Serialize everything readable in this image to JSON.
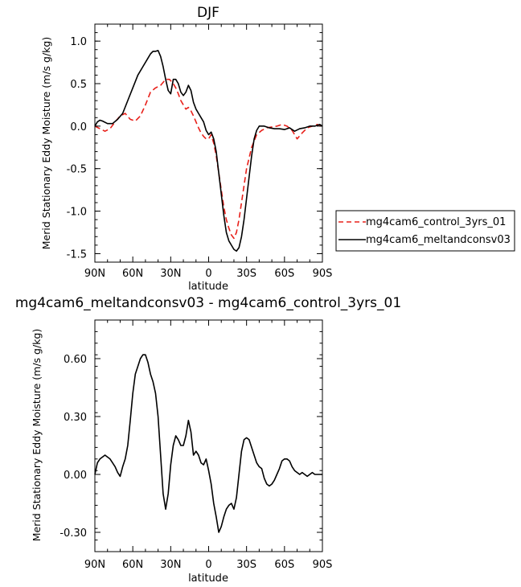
{
  "chart_data": [
    {
      "type": "line",
      "title": "DJF",
      "xlabel": "latitude",
      "ylabel": "Merid Stationary Eddy Moisture (m/s g/kg)",
      "xlim": [
        90,
        -90
      ],
      "ylim": [
        -1.6,
        1.2
      ],
      "x_ticks": [
        {
          "value": 90,
          "label": "90N"
        },
        {
          "value": 60,
          "label": "60N"
        },
        {
          "value": 30,
          "label": "30N"
        },
        {
          "value": 0,
          "label": "0"
        },
        {
          "value": -30,
          "label": "30S"
        },
        {
          "value": -60,
          "label": "60S"
        },
        {
          "value": -90,
          "label": "90S"
        }
      ],
      "y_ticks": [
        {
          "value": 1.0,
          "label": "1.0"
        },
        {
          "value": 0.5,
          "label": "0.5"
        },
        {
          "value": 0.0,
          "label": "0.0"
        },
        {
          "value": -0.5,
          "label": "-0.5"
        },
        {
          "value": -1.0,
          "label": "-1.0"
        },
        {
          "value": -1.5,
          "label": "-1.5"
        }
      ],
      "legend": {
        "placement": "right"
      },
      "series": [
        {
          "name": "mg4cam6_control_3yrs_01",
          "color": "#e8201a",
          "dash": "dashed",
          "x": [
            90,
            86,
            82,
            78,
            74,
            70,
            66,
            62,
            58,
            54,
            50,
            46,
            42,
            38,
            34,
            31,
            28,
            26,
            24,
            22,
            20,
            18,
            16,
            14,
            12,
            10,
            8,
            6,
            4,
            2,
            0,
            -2,
            -4,
            -6,
            -8,
            -10,
            -12,
            -14,
            -16,
            -18,
            -20,
            -22,
            -24,
            -26,
            -28,
            -30,
            -34,
            -38,
            -42,
            -46,
            -50,
            -54,
            -58,
            -62,
            -66,
            -70,
            -74,
            -78,
            -82,
            -86,
            -90
          ],
          "y": [
            0.0,
            -0.03,
            -0.06,
            -0.03,
            0.05,
            0.12,
            0.15,
            0.08,
            0.06,
            0.12,
            0.25,
            0.4,
            0.45,
            0.48,
            0.55,
            0.55,
            0.5,
            0.45,
            0.38,
            0.3,
            0.25,
            0.2,
            0.22,
            0.18,
            0.12,
            0.05,
            -0.02,
            -0.08,
            -0.12,
            -0.15,
            -0.15,
            -0.1,
            -0.2,
            -0.35,
            -0.55,
            -0.75,
            -0.95,
            -1.1,
            -1.2,
            -1.28,
            -1.32,
            -1.25,
            -1.1,
            -0.9,
            -0.7,
            -0.5,
            -0.25,
            -0.1,
            -0.05,
            -0.02,
            -0.01,
            0.0,
            0.02,
            0.0,
            -0.05,
            -0.15,
            -0.08,
            -0.02,
            0.0,
            0.02,
            0.0
          ]
        },
        {
          "name": "mg4cam6_meltandconsv03",
          "color": "#000000",
          "dash": "solid",
          "x": [
            90,
            88,
            86,
            84,
            80,
            76,
            72,
            68,
            64,
            60,
            56,
            52,
            48,
            46,
            44,
            42,
            40,
            38,
            36,
            34,
            32,
            30,
            28,
            26,
            24,
            22,
            20,
            18,
            16,
            14,
            12,
            10,
            8,
            6,
            4,
            2,
            0,
            -2,
            -4,
            -6,
            -8,
            -10,
            -12,
            -14,
            -16,
            -18,
            -20,
            -22,
            -24,
            -26,
            -28,
            -30,
            -32,
            -34,
            -36,
            -38,
            -40,
            -44,
            -48,
            -52,
            -56,
            -60,
            -64,
            -68,
            -72,
            -76,
            -80,
            -84,
            -88,
            -90
          ],
          "y": [
            0.0,
            0.05,
            0.07,
            0.06,
            0.03,
            0.03,
            0.08,
            0.15,
            0.3,
            0.45,
            0.6,
            0.7,
            0.8,
            0.85,
            0.88,
            0.88,
            0.89,
            0.82,
            0.7,
            0.55,
            0.42,
            0.38,
            0.55,
            0.55,
            0.5,
            0.4,
            0.36,
            0.4,
            0.48,
            0.42,
            0.28,
            0.2,
            0.15,
            0.1,
            0.05,
            -0.05,
            -0.1,
            -0.07,
            -0.15,
            -0.3,
            -0.55,
            -0.8,
            -1.05,
            -1.25,
            -1.35,
            -1.4,
            -1.45,
            -1.47,
            -1.43,
            -1.3,
            -1.1,
            -0.85,
            -0.6,
            -0.35,
            -0.15,
            -0.05,
            0.0,
            0.0,
            -0.02,
            -0.03,
            -0.03,
            -0.04,
            -0.02,
            -0.06,
            -0.03,
            -0.02,
            0.0,
            0.0,
            0.02,
            0.0
          ]
        }
      ]
    },
    {
      "type": "line",
      "title": "mg4cam6_meltandconsv03 - mg4cam6_control_3yrs_01",
      "xlabel": "latitude",
      "ylabel": "Merid Stationary Eddy Moisture (m/s g/kg)",
      "xlim": [
        90,
        -90
      ],
      "ylim": [
        -0.4,
        0.8
      ],
      "x_ticks": [
        {
          "value": 90,
          "label": "90N"
        },
        {
          "value": 60,
          "label": "60N"
        },
        {
          "value": 30,
          "label": "30N"
        },
        {
          "value": 0,
          "label": "0"
        },
        {
          "value": -30,
          "label": "30S"
        },
        {
          "value": -60,
          "label": "60S"
        },
        {
          "value": -90,
          "label": "90S"
        }
      ],
      "y_ticks": [
        {
          "value": 0.6,
          "label": "0.60"
        },
        {
          "value": 0.3,
          "label": "0.30"
        },
        {
          "value": 0.0,
          "label": "0.00"
        },
        {
          "value": -0.3,
          "label": "-0.30"
        }
      ],
      "series": [
        {
          "color": "#000000",
          "dash": "solid",
          "x": [
            90,
            88,
            86,
            84,
            82,
            80,
            78,
            76,
            74,
            72,
            70,
            68,
            66,
            64,
            62,
            60,
            58,
            56,
            54,
            52,
            50,
            48,
            46,
            44,
            42,
            40,
            38,
            36,
            34,
            32,
            30,
            28,
            26,
            24,
            22,
            20,
            18,
            16,
            14,
            12,
            10,
            8,
            6,
            4,
            2,
            0,
            -2,
            -4,
            -6,
            -8,
            -10,
            -12,
            -14,
            -16,
            -18,
            -20,
            -22,
            -24,
            -26,
            -28,
            -30,
            -32,
            -34,
            -36,
            -38,
            -40,
            -42,
            -44,
            -46,
            -48,
            -50,
            -52,
            -54,
            -56,
            -58,
            -60,
            -62,
            -64,
            -66,
            -68,
            -70,
            -72,
            -74,
            -76,
            -78,
            -80,
            -82,
            -84,
            -86,
            -88,
            -90
          ],
          "y": [
            0.0,
            0.06,
            0.08,
            0.09,
            0.1,
            0.09,
            0.08,
            0.06,
            0.04,
            0.01,
            -0.01,
            0.04,
            0.08,
            0.15,
            0.28,
            0.42,
            0.52,
            0.56,
            0.6,
            0.62,
            0.62,
            0.58,
            0.52,
            0.48,
            0.42,
            0.3,
            0.1,
            -0.1,
            -0.18,
            -0.1,
            0.05,
            0.15,
            0.2,
            0.18,
            0.15,
            0.15,
            0.2,
            0.28,
            0.22,
            0.1,
            0.12,
            0.1,
            0.06,
            0.05,
            0.08,
            0.02,
            -0.05,
            -0.15,
            -0.22,
            -0.3,
            -0.27,
            -0.22,
            -0.18,
            -0.16,
            -0.15,
            -0.18,
            -0.12,
            0.0,
            0.12,
            0.18,
            0.19,
            0.18,
            0.14,
            0.1,
            0.06,
            0.04,
            0.03,
            -0.02,
            -0.05,
            -0.06,
            -0.05,
            -0.03,
            0.0,
            0.03,
            0.07,
            0.08,
            0.08,
            0.07,
            0.04,
            0.02,
            0.01,
            0.0,
            0.01,
            0.0,
            -0.01,
            0.0,
            0.01,
            0.0,
            0.0,
            0.0,
            0.0
          ]
        }
      ]
    }
  ]
}
